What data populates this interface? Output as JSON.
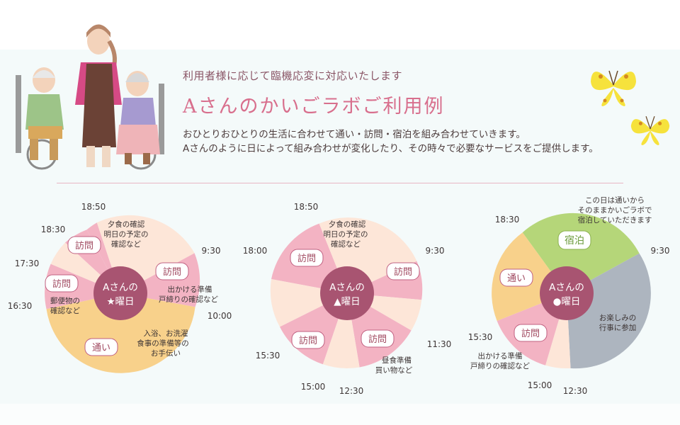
{
  "header": {
    "subtitle": "利用者様に応じて臨機応変に対応いたします",
    "title": "Aさんのかいごラボご利用例",
    "desc_line1": "おひとりおひとりの生活に合わせて通い・訪問・宿泊を組み合わせていきます。",
    "desc_line2": "Aさんのように日によって組み合わせが変化したり、その時々で必要なサービスをご提供します。"
  },
  "colors": {
    "pink": "#f3b3c3",
    "light": "#fde6d8",
    "orange": "#f8d18b",
    "green": "#b5d679",
    "gray": "#adb5bf",
    "center": "#a85471",
    "rule": "#e8b6c4"
  },
  "charts": [
    {
      "center_line1": "Aさんの",
      "center_line2": "★曜日",
      "times": {
        "t1850": "18:50",
        "t1830": "18:30",
        "t930": "9:30",
        "t1730": "17:30",
        "t1630": "16:30",
        "t1000": "10:00"
      },
      "badges": {
        "b1": "訪問",
        "b2": "訪問",
        "b3": "訪問",
        "b4": "通い"
      },
      "notes": {
        "n1a": "夕食の確認",
        "n1b": "明日の予定の",
        "n1c": "確認など",
        "n2a": "出かける準備",
        "n2b": "戸締りの確認など",
        "n3a": "郵便物の",
        "n3b": "確認など",
        "n4a": "入浴、お洗濯",
        "n4b": "食事の準備等の",
        "n4c": "お手伝い"
      }
    },
    {
      "center_line1": "Aさんの",
      "center_line2": "▲曜日",
      "times": {
        "t1850": "18:50",
        "t1800": "18:00",
        "t930": "9:30",
        "t1130": "11:30",
        "t1530": "15:30",
        "t1500": "15:00",
        "t1230": "12:30"
      },
      "badges": {
        "b1": "訪問",
        "b2": "訪問",
        "b3": "訪問",
        "b4": "訪問"
      },
      "notes": {
        "n1a": "夕食の確認",
        "n1b": "明日の予定の",
        "n1c": "確認など",
        "n2a": "昼食準備",
        "n2b": "買い物など"
      }
    },
    {
      "center_line1": "Aさんの",
      "center_line2": "●曜日",
      "times": {
        "t1830": "18:30",
        "t930": "9:30",
        "t1530": "15:30",
        "t1500": "15:00",
        "t1230": "12:30"
      },
      "badges": {
        "b1": "宿泊",
        "b2": "通い",
        "b3": "訪問"
      },
      "notes": {
        "n1a": "この日は通いから",
        "n1b": "そのままかいごラボで",
        "n1c": "宿泊していただきます",
        "n2a": "お楽しみの",
        "n2b": "行事に参加",
        "n3a": "出かける準備",
        "n3b": "戸締りの確認など"
      }
    }
  ]
}
